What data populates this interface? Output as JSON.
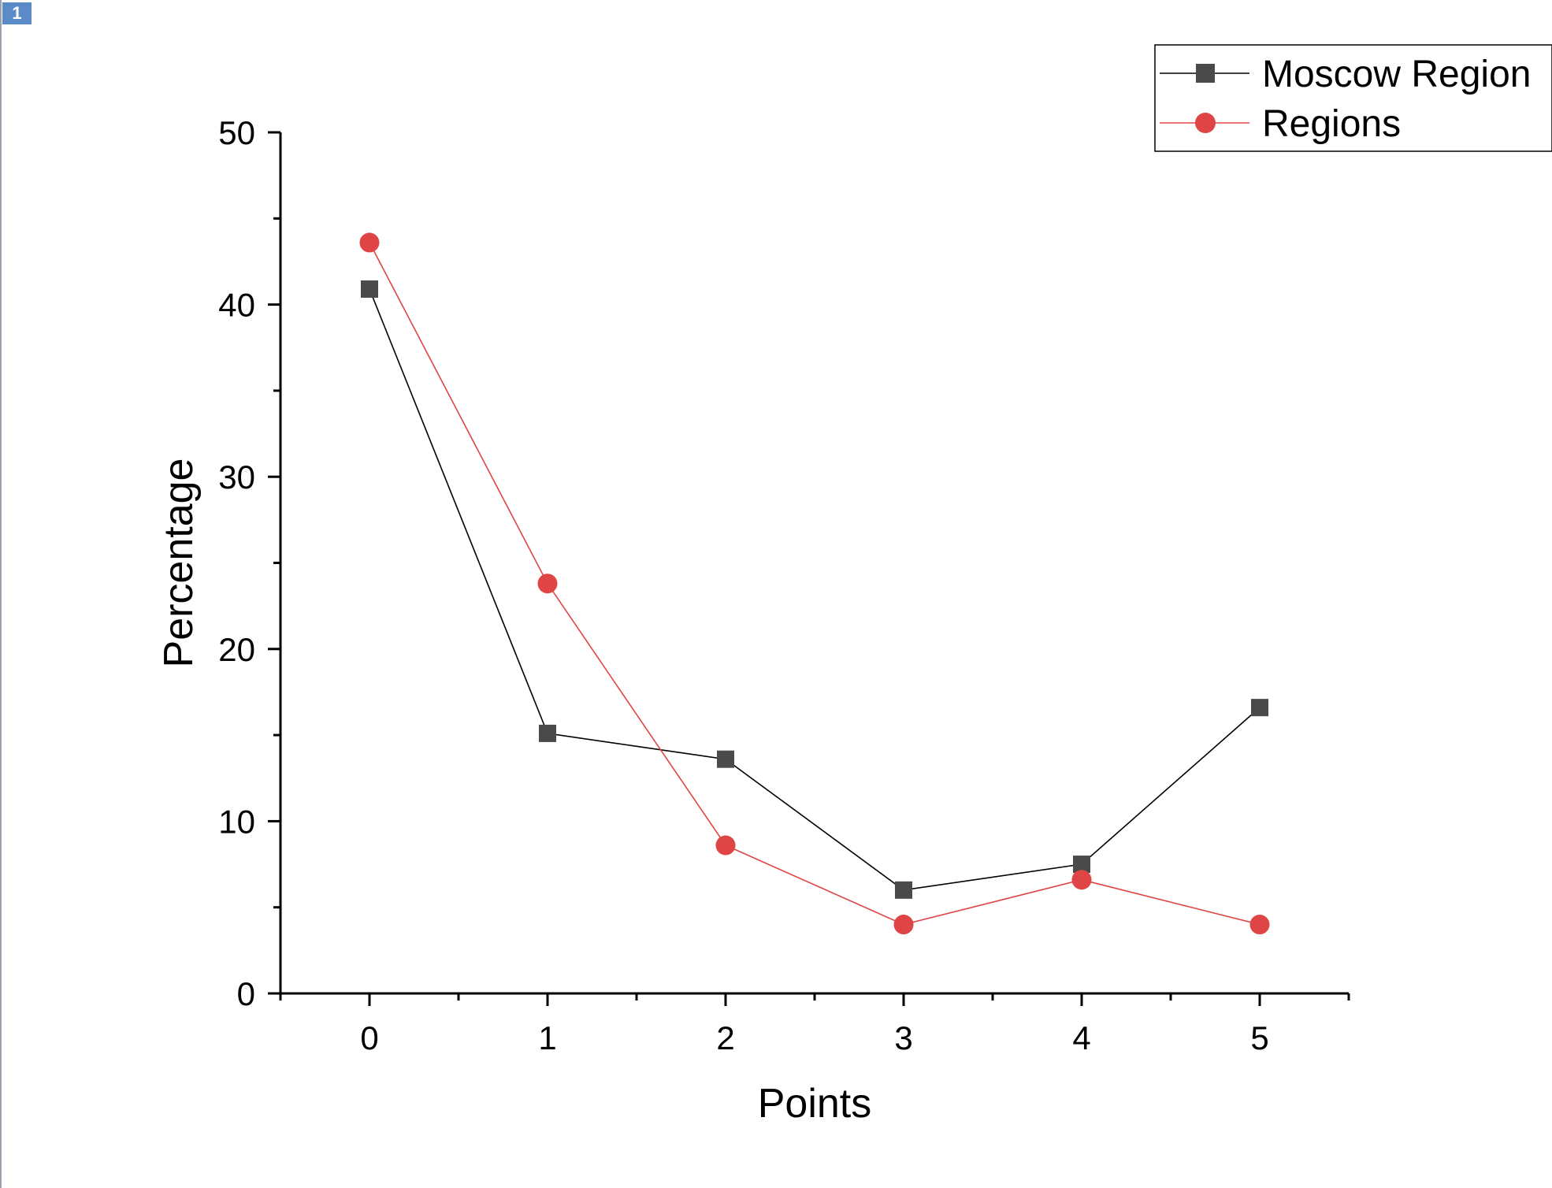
{
  "page_badge": "1",
  "chart_data": {
    "type": "line",
    "x": [
      0,
      1,
      2,
      3,
      4,
      5
    ],
    "xlabel": "Points",
    "ylabel": "Percentage",
    "xlim": [
      -0.5,
      5.5
    ],
    "ylim": [
      0,
      50
    ],
    "xticks": [
      0,
      1,
      2,
      3,
      4,
      5
    ],
    "yticks": [
      0,
      10,
      20,
      30,
      40,
      50
    ],
    "grid": false,
    "legend_position": "top-right",
    "series": [
      {
        "name": "Moscow Region",
        "marker": "square",
        "color": "#4a4a4a",
        "line_color": "#000000",
        "values": [
          40.9,
          15.1,
          13.6,
          6.0,
          7.5,
          16.6
        ]
      },
      {
        "name": "Regions",
        "marker": "circle",
        "color": "#e04545",
        "line_color": "#e04545",
        "values": [
          43.6,
          23.8,
          8.6,
          4.0,
          6.6,
          4.0
        ]
      }
    ]
  }
}
